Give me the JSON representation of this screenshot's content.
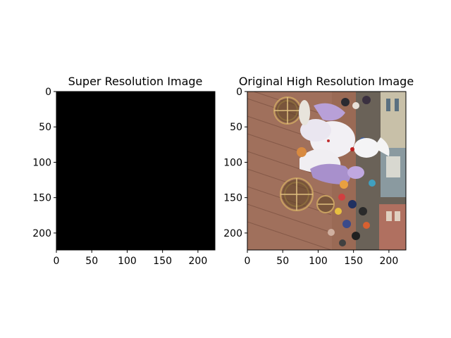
{
  "figure": {
    "panels": [
      {
        "title": "Super Resolution Image",
        "image": "black-image",
        "x_ticks": [
          "0",
          "50",
          "100",
          "150",
          "200"
        ],
        "y_ticks": [
          "0",
          "50",
          "100",
          "150",
          "200"
        ]
      },
      {
        "title": "Original High Resolution Image",
        "image": "parade-photo",
        "x_ticks": [
          "0",
          "50",
          "100",
          "150",
          "200"
        ],
        "y_ticks": [
          "0",
          "50",
          "100",
          "150",
          "200"
        ]
      }
    ]
  },
  "chart_data": [
    {
      "type": "heatmap",
      "title": "Super Resolution Image",
      "xlabel": "",
      "ylabel": "",
      "xlim": [
        0,
        224
      ],
      "ylim": [
        224,
        0
      ],
      "xticks": [
        0,
        50,
        100,
        150,
        200
      ],
      "yticks": [
        0,
        50,
        100,
        150,
        200
      ],
      "image_content": "all black",
      "fill_color": "#000000",
      "grid": false
    },
    {
      "type": "heatmap",
      "title": "Original High Resolution Image",
      "xlabel": "",
      "ylabel": "",
      "xlim": [
        0,
        224
      ],
      "ylim": [
        224,
        0
      ],
      "xticks": [
        0,
        50,
        100,
        150,
        200
      ],
      "yticks": [
        0,
        50,
        100,
        150,
        200
      ],
      "image_content": "rotated photo of a parade float with white and lavender costume, large bronze wheels, brick pavement, crowd",
      "grid": false
    }
  ]
}
